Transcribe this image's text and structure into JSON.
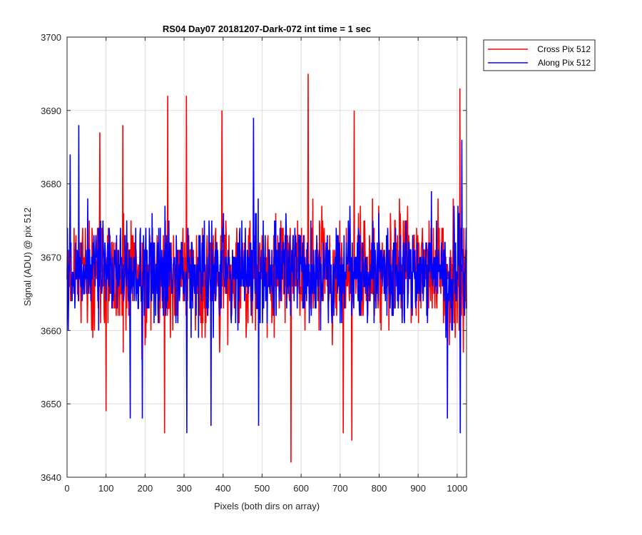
{
  "chart_data": {
    "type": "line",
    "title": "RS04 Day07 20181207-Dark-072 int time = 1 sec",
    "xlabel": "Pixels (both dirs on array)",
    "ylabel": "Signal (ADU) @ pix 512",
    "xlim": [
      0,
      1024
    ],
    "ylim": [
      3640,
      3700
    ],
    "xticks": [
      0,
      100,
      200,
      300,
      400,
      500,
      600,
      700,
      800,
      900,
      1000
    ],
    "yticks": [
      3640,
      3650,
      3660,
      3670,
      3680,
      3690,
      3700
    ],
    "grid": true,
    "legend_position": "outside-top-right",
    "series": [
      {
        "name": "Cross Pix 512",
        "color": "#ff0000",
        "mean": 3668,
        "noise_sigma": 6,
        "sample_every": 1,
        "highlights": [
          {
            "x": 250,
            "y": 3646
          },
          {
            "x": 258,
            "y": 3692
          },
          {
            "x": 306,
            "y": 3692
          },
          {
            "x": 397,
            "y": 3690
          },
          {
            "x": 574,
            "y": 3642
          },
          {
            "x": 618,
            "y": 3695
          },
          {
            "x": 708,
            "y": 3646
          },
          {
            "x": 730,
            "y": 3645
          },
          {
            "x": 736,
            "y": 3690
          },
          {
            "x": 1007,
            "y": 3693
          },
          {
            "x": 84,
            "y": 3687
          },
          {
            "x": 143,
            "y": 3688
          },
          {
            "x": 100,
            "y": 3649
          }
        ]
      },
      {
        "name": "Along Pix 512",
        "color": "#0000ff",
        "mean": 3668,
        "noise_sigma": 5.5,
        "sample_every": 1,
        "highlights": [
          {
            "x": 30,
            "y": 3688
          },
          {
            "x": 162,
            "y": 3648
          },
          {
            "x": 193,
            "y": 3648
          },
          {
            "x": 307,
            "y": 3646
          },
          {
            "x": 369,
            "y": 3647
          },
          {
            "x": 478,
            "y": 3689
          },
          {
            "x": 491,
            "y": 3647
          },
          {
            "x": 1008,
            "y": 3646
          },
          {
            "x": 975,
            "y": 3648
          },
          {
            "x": 1012,
            "y": 3686
          },
          {
            "x": 8,
            "y": 3684
          }
        ]
      }
    ]
  }
}
